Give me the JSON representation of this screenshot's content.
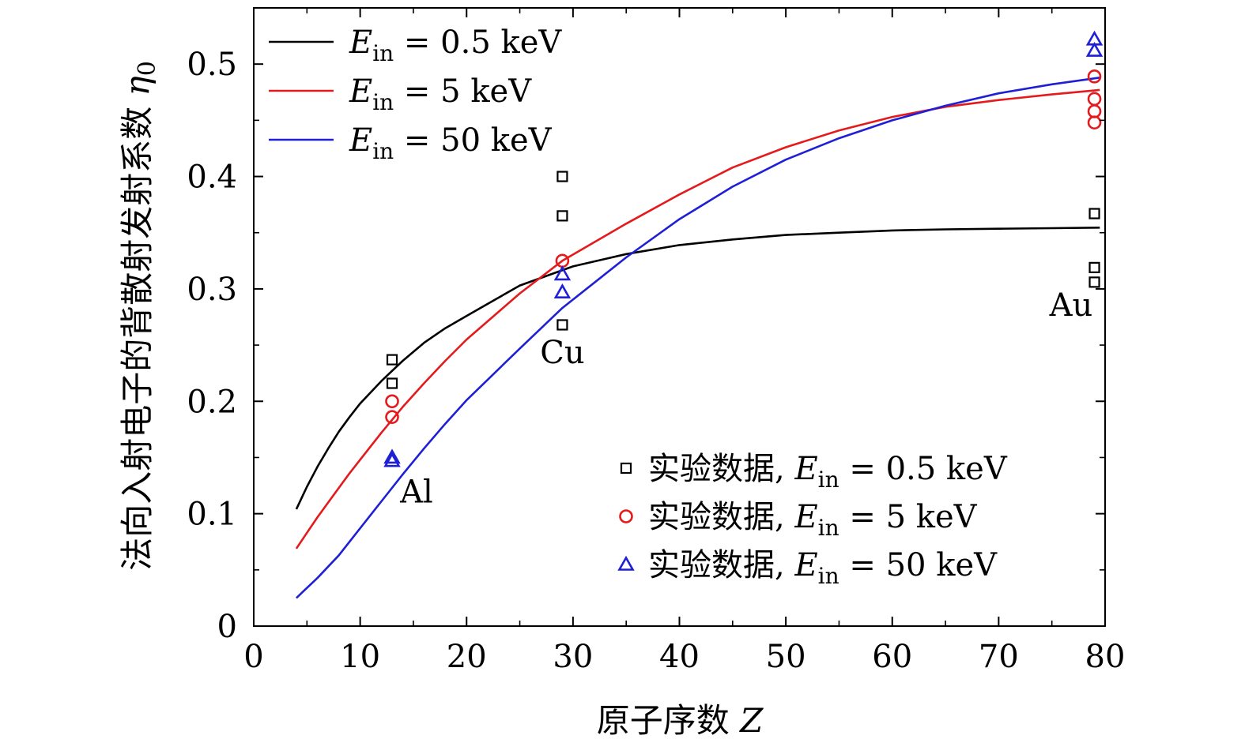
{
  "chart_data": {
    "type": "scatter",
    "xlabel": "原子序数 Z",
    "ylabel": "法向入射电子的背散射发射系数 η0",
    "xlim": [
      0,
      80
    ],
    "ylim": [
      0,
      0.55
    ],
    "x_ticks": [
      "0",
      "10",
      "20",
      "30",
      "40",
      "50",
      "60",
      "70",
      "80"
    ],
    "y_ticks": [
      "0",
      "0.1",
      "0.2",
      "0.3",
      "0.4",
      "0.5"
    ],
    "grid": false,
    "legend_line_placement": "top-left",
    "legend_marker_placement": "bottom-right",
    "series": [
      {
        "kind": "line",
        "name": "Ein = 0.5 keV",
        "label_sym": "E",
        "label_sub": "in",
        "label_rest": " = 0.5 keV",
        "color": "#000000",
        "x": [
          4,
          5,
          6,
          7,
          8,
          9,
          10,
          12,
          14,
          16,
          18,
          20,
          25,
          30,
          35,
          40,
          45,
          50,
          55,
          60,
          65,
          70,
          75,
          79.5
        ],
        "y": [
          0.104,
          0.124,
          0.142,
          0.158,
          0.173,
          0.186,
          0.198,
          0.218,
          0.236,
          0.252,
          0.265,
          0.276,
          0.303,
          0.32,
          0.331,
          0.339,
          0.344,
          0.348,
          0.35,
          0.352,
          0.353,
          0.3535,
          0.354,
          0.3545
        ]
      },
      {
        "kind": "line",
        "name": "Ein = 5 keV",
        "label_sym": "E",
        "label_sub": "in",
        "label_rest": " = 5 keV",
        "color": "#e41a1c",
        "x": [
          4,
          5,
          6,
          7,
          8,
          9,
          10,
          12,
          14,
          16,
          18,
          20,
          25,
          29,
          35,
          40,
          45,
          50,
          55,
          60,
          65,
          70,
          75,
          79.5
        ],
        "y": [
          0.069,
          0.083,
          0.097,
          0.11,
          0.123,
          0.136,
          0.148,
          0.172,
          0.195,
          0.216,
          0.236,
          0.255,
          0.296,
          0.325,
          0.358,
          0.384,
          0.408,
          0.426,
          0.441,
          0.453,
          0.462,
          0.468,
          0.473,
          0.477
        ]
      },
      {
        "kind": "line",
        "name": "Ein = 50 keV",
        "label_sym": "E",
        "label_sub": "in",
        "label_rest": " = 50 keV",
        "color": "#1f1fd6",
        "x": [
          4,
          6,
          8,
          10,
          12,
          14,
          16,
          18,
          20,
          25,
          29,
          35,
          40,
          45,
          50,
          55,
          60,
          65,
          70,
          75,
          79.5
        ],
        "y": [
          0.025,
          0.043,
          0.063,
          0.087,
          0.111,
          0.135,
          0.158,
          0.18,
          0.201,
          0.247,
          0.283,
          0.328,
          0.362,
          0.391,
          0.415,
          0.434,
          0.45,
          0.463,
          0.474,
          0.482,
          0.488
        ]
      },
      {
        "kind": "scatter",
        "marker": "square",
        "name": "实验数据, Ein = 0.5 keV",
        "label_prefix": "实验数据, ",
        "label_sym": "E",
        "label_sub": "in",
        "label_rest": " = 0.5 keV",
        "color": "#000000",
        "points": [
          [
            13,
            0.237
          ],
          [
            13,
            0.216
          ],
          [
            29,
            0.4
          ],
          [
            29,
            0.365
          ],
          [
            29,
            0.268
          ],
          [
            79,
            0.367
          ],
          [
            79,
            0.319
          ],
          [
            79,
            0.306
          ]
        ]
      },
      {
        "kind": "scatter",
        "marker": "circle",
        "name": "实验数据, Ein = 5 keV",
        "label_prefix": "实验数据, ",
        "label_sym": "E",
        "label_sub": "in",
        "label_rest": " = 5 keV",
        "color": "#e41a1c",
        "points": [
          [
            13,
            0.2
          ],
          [
            13,
            0.186
          ],
          [
            29,
            0.325
          ],
          [
            79,
            0.489
          ],
          [
            79,
            0.469
          ],
          [
            79,
            0.458
          ],
          [
            79,
            0.448
          ]
        ]
      },
      {
        "kind": "scatter",
        "marker": "triangle",
        "name": "实验数据, Ein = 50 keV",
        "label_prefix": "实验数据, ",
        "label_sym": "E",
        "label_sub": "in",
        "label_rest": " = 50 keV",
        "color": "#1f1fd6",
        "points": [
          [
            13,
            0.15
          ],
          [
            13,
            0.147
          ],
          [
            29,
            0.313
          ],
          [
            29,
            0.297
          ],
          [
            79,
            0.522
          ],
          [
            79,
            0.512
          ]
        ]
      }
    ],
    "annotations": [
      {
        "text": "Al",
        "x": 15.3,
        "y": 0.11
      },
      {
        "text": "Cu",
        "x": 29,
        "y": 0.234
      },
      {
        "text": "Au",
        "x": 76.8,
        "y": 0.276
      }
    ]
  }
}
